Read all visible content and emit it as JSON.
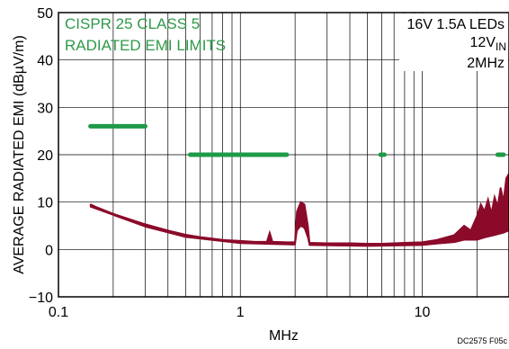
{
  "chart_data": {
    "type": "line",
    "xscale": "log",
    "xlim": [
      0.1,
      30
    ],
    "ylim": [
      -10,
      50
    ],
    "xlabel": "MHz",
    "ylabel": "AVERAGE RADIATED EMI (dBµV/m)",
    "xtick_labels": [
      "0.1",
      "1",
      "10"
    ],
    "xtick_values": [
      0.1,
      1,
      10
    ],
    "ytick_labels": [
      "−10",
      "0",
      "10",
      "20",
      "30",
      "40",
      "50"
    ],
    "ytick_values": [
      -10,
      0,
      10,
      20,
      30,
      40,
      50
    ],
    "grid": true,
    "limit_color": "#1e9a48",
    "trace_color": "#8b0a2a",
    "annotation_left": [
      "CISPR 25 CLASS 5",
      "RADIATED EMI LIMITS"
    ],
    "annotation_right_line1": "16V 1.5A LEDs",
    "annotation_right_line2_main": "12V",
    "annotation_right_line2_sub": "IN",
    "annotation_right_line3": "2MHz",
    "figure_id": "DC2575 F05c",
    "limit_segments": [
      {
        "x": [
          0.15,
          0.3
        ],
        "y": 26
      },
      {
        "x": [
          0.53,
          1.8
        ],
        "y": 20
      },
      {
        "x": [
          5.9,
          6.2
        ],
        "y": 20
      },
      {
        "x": [
          26,
          28
        ],
        "y": 20
      }
    ],
    "trace": [
      [
        0.15,
        9.5
      ],
      [
        0.16,
        9.0
      ],
      [
        0.18,
        8.2
      ],
      [
        0.2,
        7.5
      ],
      [
        0.25,
        6.3
      ],
      [
        0.3,
        5.3
      ],
      [
        0.35,
        4.6
      ],
      [
        0.4,
        4.0
      ],
      [
        0.5,
        3.1
      ],
      [
        0.6,
        2.6
      ],
      [
        0.7,
        2.3
      ],
      [
        0.8,
        2.0
      ],
      [
        1.0,
        1.8
      ],
      [
        1.2,
        1.6
      ],
      [
        1.4,
        1.6
      ],
      [
        1.45,
        3.5
      ],
      [
        1.5,
        1.6
      ],
      [
        1.8,
        1.5
      ],
      [
        2.0,
        1.5
      ],
      [
        2.05,
        8.0
      ],
      [
        2.15,
        10.0
      ],
      [
        2.25,
        9.5
      ],
      [
        2.35,
        5.0
      ],
      [
        2.4,
        1.4
      ],
      [
        3.0,
        1.3
      ],
      [
        4.0,
        1.3
      ],
      [
        5.0,
        1.2
      ],
      [
        6.0,
        1.2
      ],
      [
        7.0,
        1.3
      ],
      [
        8.0,
        1.4
      ],
      [
        10.0,
        1.5
      ],
      [
        12.0,
        2.0
      ],
      [
        15.0,
        3.0
      ],
      [
        17.0,
        5.0
      ],
      [
        18.5,
        4.0
      ],
      [
        20.0,
        7.0
      ],
      [
        21.0,
        9.5
      ],
      [
        22.0,
        8.0
      ],
      [
        23.0,
        10.5
      ],
      [
        24.0,
        7.5
      ],
      [
        25.0,
        11.0
      ],
      [
        26.0,
        9.0
      ],
      [
        27.0,
        13.0
      ],
      [
        28.0,
        10.0
      ],
      [
        29.0,
        15.0
      ],
      [
        30.0,
        16.0
      ]
    ],
    "trace_low": [
      [
        0.15,
        9.0
      ],
      [
        0.3,
        4.8
      ],
      [
        0.5,
        2.6
      ],
      [
        1.0,
        1.3
      ],
      [
        2.0,
        1.0
      ],
      [
        2.05,
        4.0
      ],
      [
        2.15,
        5.0
      ],
      [
        2.25,
        4.5
      ],
      [
        2.35,
        2.5
      ],
      [
        2.4,
        0.9
      ],
      [
        5.0,
        0.7
      ],
      [
        10.0,
        0.9
      ],
      [
        12.0,
        1.2
      ],
      [
        15.0,
        1.5
      ],
      [
        17.0,
        2.0
      ],
      [
        20.0,
        2.0
      ],
      [
        22.0,
        2.5
      ],
      [
        25.0,
        3.0
      ],
      [
        28.0,
        3.5
      ],
      [
        30.0,
        4.0
      ]
    ]
  }
}
